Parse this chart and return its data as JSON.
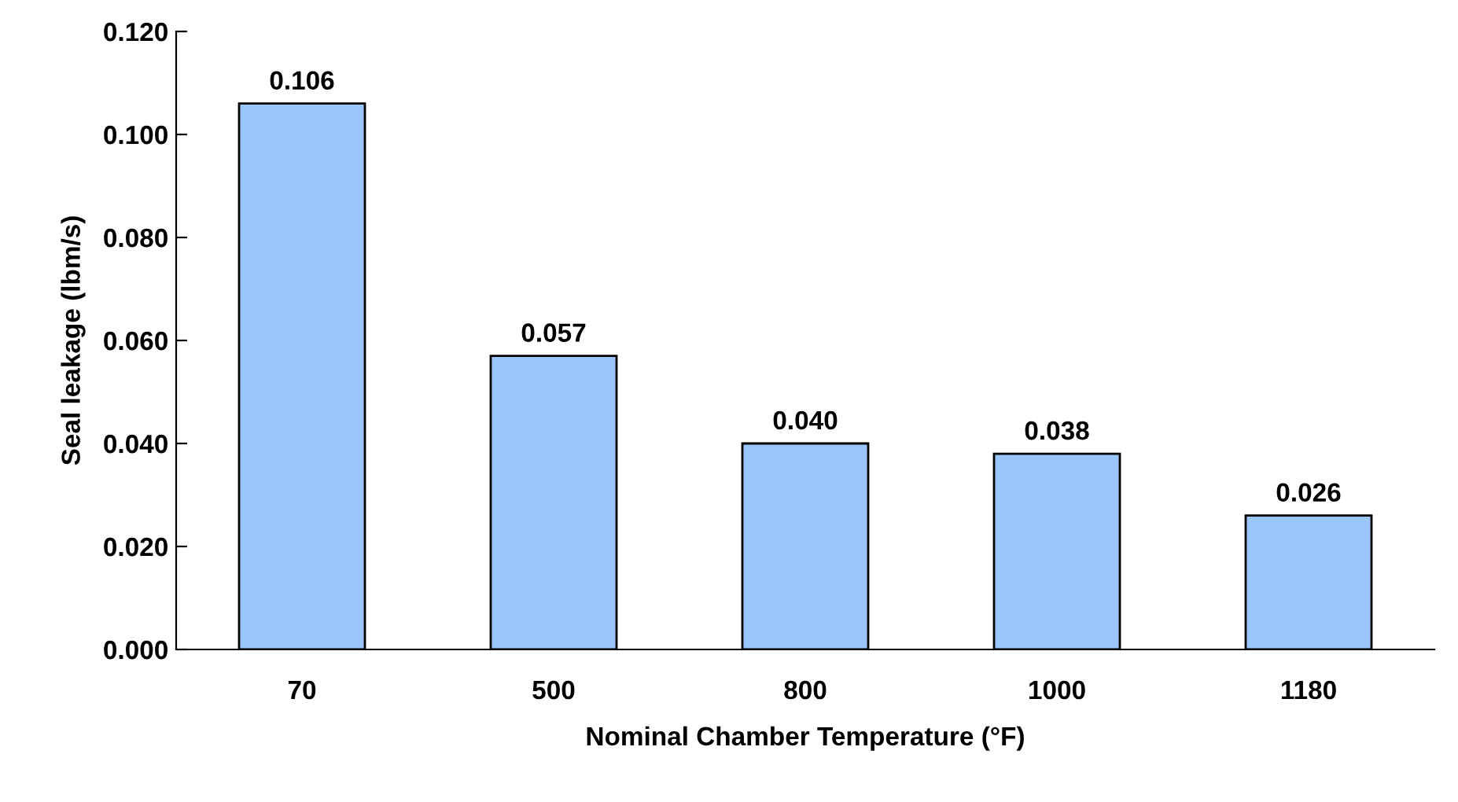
{
  "chart_data": {
    "type": "bar",
    "xlabel": "Nominal Chamber Temperature (°F)",
    "ylabel": "Seal leakage (lbm/s)",
    "categories": [
      "70",
      "500",
      "800",
      "1000",
      "1180"
    ],
    "values": [
      0.106,
      0.057,
      0.04,
      0.038,
      0.026
    ],
    "value_labels": [
      "0.106",
      "0.057",
      "0.040",
      "0.038",
      "0.026"
    ],
    "color": "#99c6fa",
    "ylim": [
      0,
      0.12
    ],
    "yticks": [
      {
        "value": 0,
        "label": "0.000"
      },
      {
        "value": 0.02,
        "label": "0.020"
      },
      {
        "value": 0.04,
        "label": "0.040"
      },
      {
        "value": 0.06,
        "label": "0.060"
      },
      {
        "value": 0.08,
        "label": "0.080"
      },
      {
        "value": 0.1,
        "label": "0.100"
      },
      {
        "value": 0.12,
        "label": "0.120"
      }
    ],
    "grid": false,
    "legend": false
  }
}
